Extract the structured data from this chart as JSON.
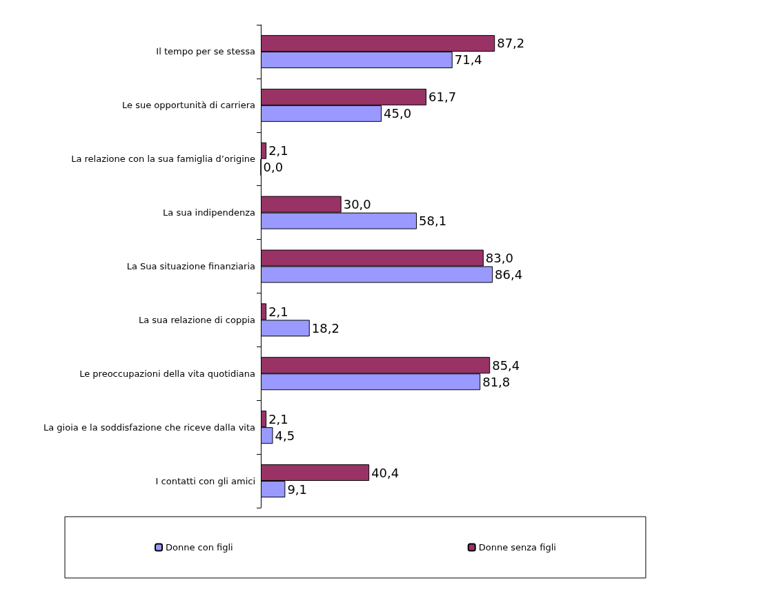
{
  "chart_data": {
    "type": "bar",
    "orientation": "horizontal",
    "categories": [
      "Il tempo per se stessa",
      "Le sue opportunità di carriera",
      "La relazione con la sua famiglia d’origine",
      "La sua indipendenza",
      "La Sua situazione finanziaria",
      "La sua relazione di coppia",
      "Le preoccupazioni della vita quotidiana",
      "La gioia e la soddisfazione che riceve dalla vita",
      "I contatti con gli amici"
    ],
    "series": [
      {
        "name": "Donne con figli",
        "color": "#9999ff",
        "values": [
          71.4,
          45.0,
          0.0,
          58.1,
          86.4,
          18.2,
          81.8,
          4.5,
          9.1
        ],
        "value_labels": [
          "71,4",
          "45,0",
          "0,0",
          "58,1",
          "86,4",
          "18,2",
          "81,8",
          "4,5",
          "9,1"
        ]
      },
      {
        "name": "Donne senza figli",
        "color": "#993366",
        "values": [
          87.2,
          61.7,
          2.1,
          30.0,
          83.0,
          2.1,
          85.4,
          2.1,
          40.4
        ],
        "value_labels": [
          "87,2",
          "61,7",
          "2,1",
          "30,0",
          "83,0",
          "2,1",
          "85,4",
          "2,1",
          "40,4"
        ]
      }
    ],
    "legend": "bottom"
  }
}
